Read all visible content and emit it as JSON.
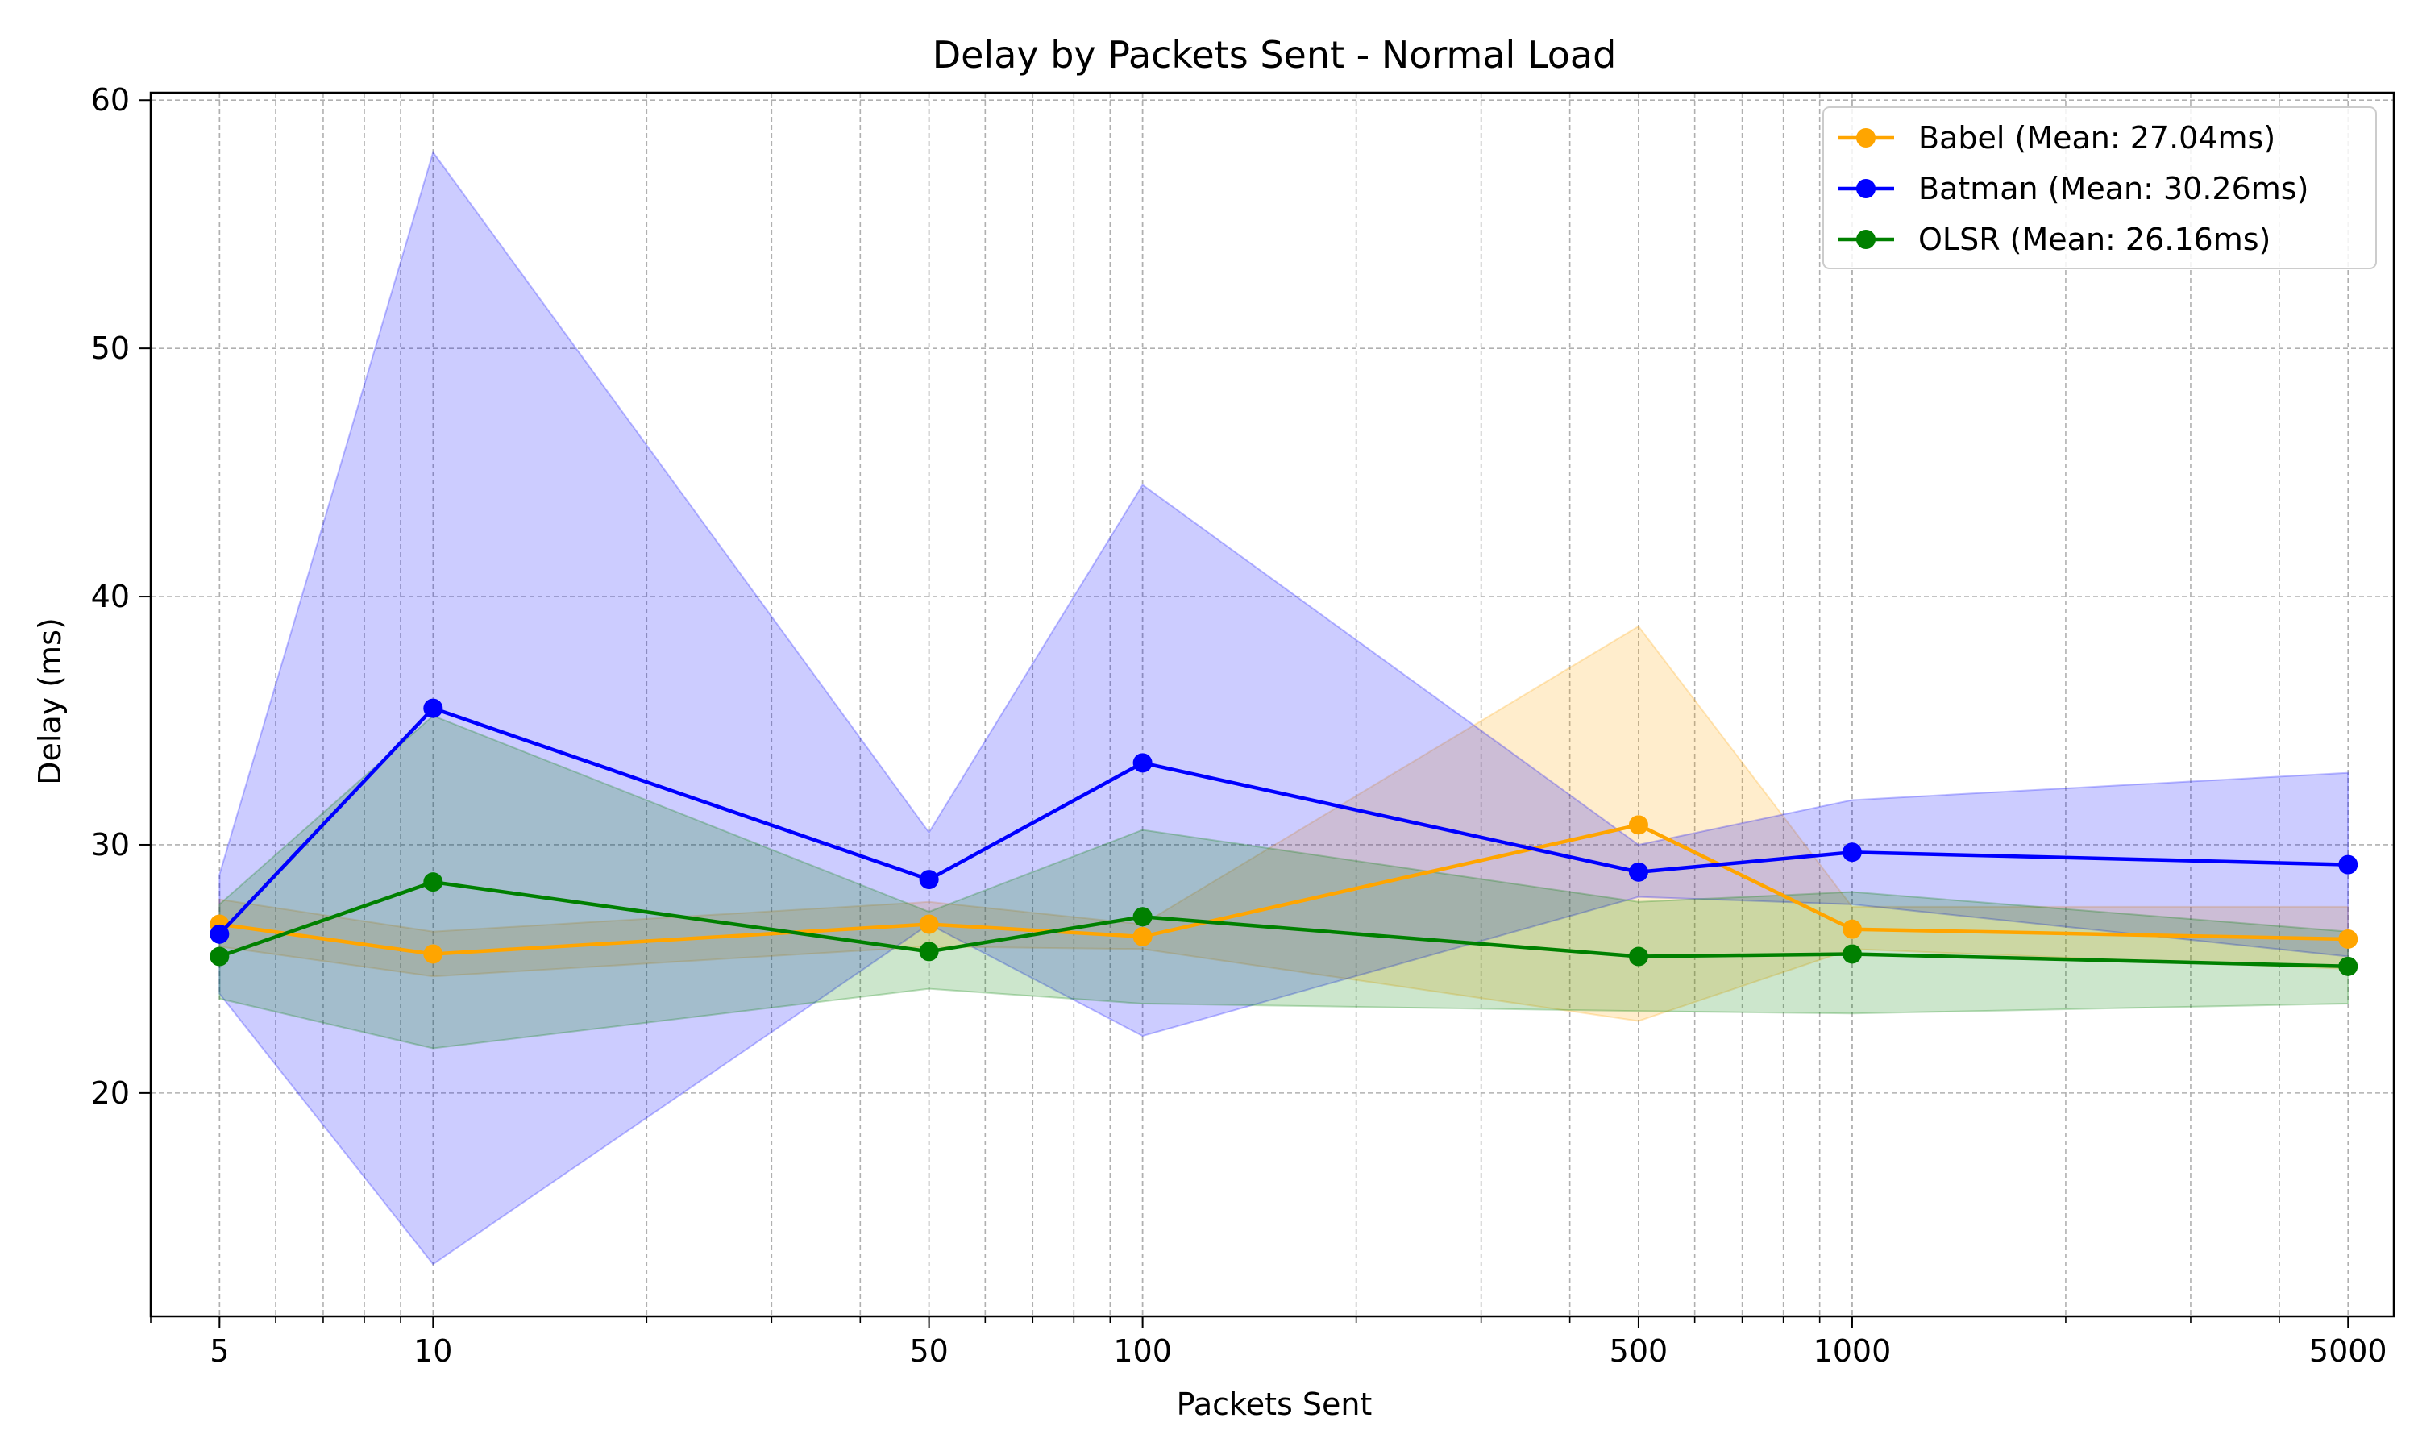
{
  "chart_data": {
    "type": "line",
    "title": "Delay by Packets Sent - Normal Load",
    "xlabel": "Packets Sent",
    "ylabel": "Delay (ms)",
    "xscale": "log",
    "xlim": [
      4,
      5800
    ],
    "ylim": [
      11,
      60.3
    ],
    "x": [
      5,
      10,
      50,
      100,
      500,
      1000,
      5000
    ],
    "xticks": [
      5,
      10,
      50,
      100,
      500,
      1000,
      5000
    ],
    "xtick_labels": [
      "5",
      "10",
      "50",
      "100",
      "500",
      "1000",
      "5000"
    ],
    "yticks": [
      20,
      30,
      40,
      50,
      60
    ],
    "ytick_labels": [
      "20",
      "30",
      "40",
      "50",
      "60"
    ],
    "grid": true,
    "legend_position": "top-right",
    "series": [
      {
        "name": "Babel (Mean: 27.04ms)",
        "color": "#FFA500",
        "values": [
          26.8,
          25.6,
          26.8,
          26.3,
          30.8,
          26.6,
          26.2
        ],
        "band_upper": [
          27.8,
          26.5,
          27.7,
          26.8,
          38.8,
          27.5,
          27.5
        ],
        "band_lower": [
          25.9,
          24.7,
          25.9,
          25.8,
          22.9,
          25.8,
          25.0
        ]
      },
      {
        "name": "Batman (Mean: 30.26ms)",
        "color": "#0000FF",
        "values": [
          26.4,
          35.5,
          28.6,
          33.3,
          28.9,
          29.7,
          29.2
        ],
        "band_upper": [
          28.8,
          57.9,
          30.5,
          44.5,
          30.0,
          31.8,
          32.9
        ],
        "band_lower": [
          24.0,
          13.1,
          26.8,
          22.3,
          27.9,
          27.6,
          25.5
        ]
      },
      {
        "name": "OLSR (Mean: 26.16ms)",
        "color": "#008000",
        "values": [
          25.5,
          28.5,
          25.7,
          27.1,
          25.5,
          25.6,
          25.1
        ],
        "band_upper": [
          27.6,
          35.2,
          27.3,
          30.6,
          27.7,
          28.1,
          26.5
        ],
        "band_lower": [
          23.8,
          21.8,
          24.2,
          23.6,
          23.3,
          23.2,
          23.6
        ]
      }
    ]
  }
}
